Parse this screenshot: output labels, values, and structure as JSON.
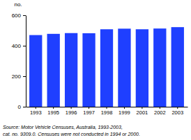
{
  "chart_data": {
    "type": "bar",
    "y_label": "no.",
    "categories": [
      "1993",
      "1995",
      "1996",
      "1997",
      "1998",
      "1999",
      "2001",
      "2002",
      "2003"
    ],
    "values": [
      470,
      478,
      483,
      482,
      508,
      512,
      508,
      513,
      522
    ],
    "color": "#1f3fff",
    "ylim": [
      0,
      600
    ],
    "yticks": [
      0,
      200,
      400,
      600
    ],
    "grid": false,
    "annotations": [
      "Source: Motor Vehicle Censuses, Australia, 1993-2003,",
      "cat. no. 9309.0. Censuses were not conducted in 1994 or 2000."
    ]
  }
}
